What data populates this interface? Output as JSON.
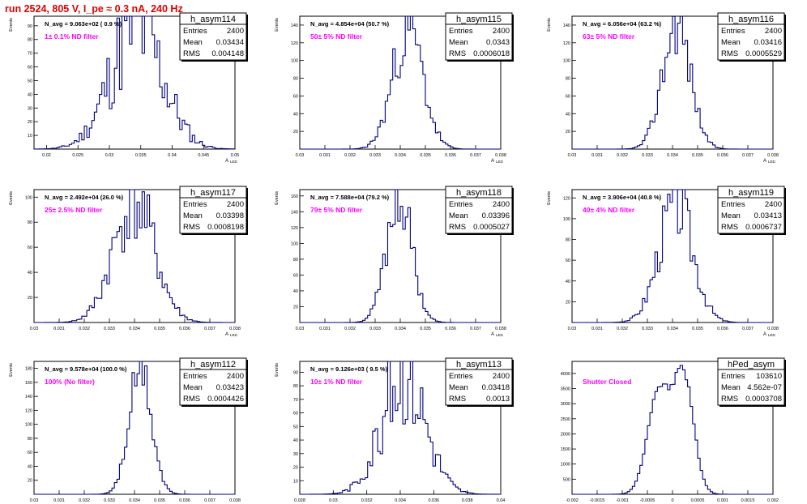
{
  "run_title": "run 2524,   805 V, I_pe ≈ 0.3 nA, 240 Hz",
  "colors": {
    "hist_line": "#00007f",
    "label_magenta": "#ff00ff",
    "title_red": "#e00000",
    "frame": "#000000"
  },
  "chart_data": [
    {
      "type": "bar",
      "hist_name": "h_asym114",
      "stats": {
        "entries_label": "Entries",
        "entries": "2400",
        "mean_label": "Mean",
        "mean": "0.03434",
        "rms_label": "RMS",
        "rms": "0.004148"
      },
      "navg_text": "N_avg = 9.063e+02 ( 0.9 %)",
      "filter_label": "1± 0.1% ND filter",
      "xlabel": "A",
      "xlabel_sub": "LED",
      "ylabel": "Events",
      "xlim": [
        0.018,
        0.05
      ],
      "ylim": [
        0,
        97
      ],
      "xticks": [
        0.02,
        0.025,
        0.03,
        0.035,
        0.04,
        0.045,
        0.05
      ],
      "xtick_labels": [
        "0.02",
        "0.025",
        "0.03",
        "0.035",
        "0.04",
        "0.045",
        "0.05"
      ],
      "yticks": [
        10,
        20,
        30,
        40,
        50,
        60,
        70,
        80,
        90
      ],
      "ytick_labels": [
        "10",
        "20",
        "30",
        "40",
        "50",
        "60",
        "70",
        "80",
        "90"
      ],
      "mean": 0.03434,
      "rms": 0.004148,
      "peak": 90,
      "noise": 0.5,
      "seed": 11
    },
    {
      "type": "bar",
      "hist_name": "h_asym115",
      "stats": {
        "entries_label": "Entries",
        "entries": "2400",
        "mean_label": "Mean",
        "mean": "0.0343",
        "rms_label": "RMS",
        "rms": "0.0006018"
      },
      "navg_text": "N_avg = 4.854e+04 (50.7 %)",
      "filter_label": "50± 5% ND filter",
      "xlabel": "A",
      "xlabel_sub": "LED",
      "ylabel": "Events",
      "xlim": [
        0.03,
        0.038
      ],
      "ylim": [
        0,
        150
      ],
      "xticks": [
        0.03,
        0.031,
        0.032,
        0.033,
        0.034,
        0.035,
        0.036,
        0.037,
        0.038
      ],
      "xtick_labels": [
        "0.03",
        "0.031",
        "0.032",
        "0.033",
        "0.034",
        "0.035",
        "0.036",
        "0.037",
        "0.038"
      ],
      "yticks": [
        20,
        40,
        60,
        80,
        100,
        120,
        140
      ],
      "ytick_labels": [
        "20",
        "40",
        "60",
        "80",
        "100",
        "120",
        "140"
      ],
      "mean": 0.0343,
      "rms": 0.0006018,
      "peak": 135,
      "noise": 0.3,
      "seed": 23
    },
    {
      "type": "bar",
      "hist_name": "h_asym116",
      "stats": {
        "entries_label": "Entries",
        "entries": "2400",
        "mean_label": "Mean",
        "mean": "0.03416",
        "rms_label": "RMS",
        "rms": "0.0005529"
      },
      "navg_text": "N_avg = 6.056e+04 (63.2 %)",
      "filter_label": "63± 5% ND filter",
      "xlabel": "A",
      "xlabel_sub": "LED",
      "ylabel": "Events",
      "xlim": [
        0.03,
        0.038
      ],
      "ylim": [
        0,
        150
      ],
      "xticks": [
        0.03,
        0.031,
        0.032,
        0.033,
        0.034,
        0.035,
        0.036,
        0.037,
        0.038
      ],
      "xtick_labels": [
        "0.03",
        "0.031",
        "0.032",
        "0.033",
        "0.034",
        "0.035",
        "0.036",
        "0.037",
        "0.038"
      ],
      "yticks": [
        20,
        40,
        60,
        80,
        100,
        120,
        140
      ],
      "ytick_labels": [
        "20",
        "40",
        "60",
        "80",
        "100",
        "120",
        "140"
      ],
      "mean": 0.03416,
      "rms": 0.0005529,
      "peak": 143,
      "noise": 0.25,
      "seed": 37
    },
    {
      "type": "bar",
      "hist_name": "h_asym117",
      "stats": {
        "entries_label": "Entries",
        "entries": "2400",
        "mean_label": "Mean",
        "mean": "0.03398",
        "rms_label": "RMS",
        "rms": "0.0008198"
      },
      "navg_text": "N_avg = 2.492e+04 (26.0 %)",
      "filter_label": "25± 2.5% ND filter",
      "xlabel": "A",
      "xlabel_sub": "LED",
      "ylabel": "Events",
      "xlim": [
        0.03,
        0.038
      ],
      "ylim": [
        0,
        106
      ],
      "xticks": [
        0.03,
        0.031,
        0.032,
        0.033,
        0.034,
        0.035,
        0.036,
        0.037,
        0.038
      ],
      "xtick_labels": [
        "0.03",
        "0.031",
        "0.032",
        "0.033",
        "0.034",
        "0.035",
        "0.036",
        "0.037",
        "0.038"
      ],
      "yticks": [
        20,
        40,
        60,
        80,
        100
      ],
      "ytick_labels": [
        "20",
        "40",
        "60",
        "80",
        "100"
      ],
      "mean": 0.03398,
      "rms": 0.0008198,
      "peak": 96,
      "noise": 0.35,
      "seed": 41
    },
    {
      "type": "bar",
      "hist_name": "h_asym118",
      "stats": {
        "entries_label": "Entries",
        "entries": "2400",
        "mean_label": "Mean",
        "mean": "0.03396",
        "rms_label": "RMS",
        "rms": "0.0005027"
      },
      "navg_text": "N_avg = 7.588e+04 (79.2 %)",
      "filter_label": "79± 5% ND filter",
      "xlabel": "A",
      "xlabel_sub": "LED",
      "ylabel": "Events",
      "xlim": [
        0.03,
        0.038
      ],
      "ylim": [
        0,
        168
      ],
      "xticks": [
        0.03,
        0.031,
        0.032,
        0.033,
        0.034,
        0.035,
        0.036,
        0.037,
        0.038
      ],
      "xtick_labels": [
        "0.03",
        "0.031",
        "0.032",
        "0.033",
        "0.034",
        "0.035",
        "0.036",
        "0.037",
        "0.038"
      ],
      "yticks": [
        20,
        40,
        60,
        80,
        100,
        120,
        140,
        160
      ],
      "ytick_labels": [
        "20",
        "40",
        "60",
        "80",
        "100",
        "120",
        "140",
        "160"
      ],
      "mean": 0.03396,
      "rms": 0.0005027,
      "peak": 158,
      "noise": 0.25,
      "seed": 53
    },
    {
      "type": "bar",
      "hist_name": "h_asym119",
      "stats": {
        "entries_label": "Entries",
        "entries": "2400",
        "mean_label": "Mean",
        "mean": "0.03413",
        "rms_label": "RMS",
        "rms": "0.0006737"
      },
      "navg_text": "N_avg = 3.906e+04 (40.8 %)",
      "filter_label": "40± 4% ND filter",
      "xlabel": "A",
      "xlabel_sub": "LED",
      "ylabel": "Events",
      "xlim": [
        0.03,
        0.038
      ],
      "ylim": [
        0,
        128
      ],
      "xticks": [
        0.03,
        0.031,
        0.032,
        0.033,
        0.034,
        0.035,
        0.036,
        0.037,
        0.038
      ],
      "xtick_labels": [
        "0.03",
        "0.031",
        "0.032",
        "0.033",
        "0.034",
        "0.035",
        "0.036",
        "0.037",
        "0.038"
      ],
      "yticks": [
        20,
        40,
        60,
        80,
        100,
        120
      ],
      "ytick_labels": [
        "20",
        "40",
        "60",
        "80",
        "100",
        "120"
      ],
      "mean": 0.03413,
      "rms": 0.0006737,
      "peak": 115,
      "noise": 0.3,
      "seed": 67
    },
    {
      "type": "bar",
      "hist_name": "h_asym112",
      "stats": {
        "entries_label": "Entries",
        "entries": "2400",
        "mean_label": "Mean",
        "mean": "0.03423",
        "rms_label": "RMS",
        "rms": "0.0004426"
      },
      "navg_text": "N_avg = 9.578e+04 (100.0 %)",
      "filter_label": "100% (No filter)",
      "xlabel": "A",
      "xlabel_sub": "LED",
      "ylabel": "Events",
      "xlim": [
        0.03,
        0.038
      ],
      "ylim": [
        0,
        190
      ],
      "xticks": [
        0.03,
        0.031,
        0.032,
        0.033,
        0.034,
        0.035,
        0.036,
        0.037,
        0.038
      ],
      "xtick_labels": [
        "0.03",
        "0.031",
        "0.032",
        "0.033",
        "0.034",
        "0.035",
        "0.036",
        "0.037",
        "0.038"
      ],
      "yticks": [
        20,
        40,
        60,
        80,
        100,
        120,
        140,
        160,
        180
      ],
      "ytick_labels": [
        "20",
        "40",
        "60",
        "80",
        "100",
        "120",
        "140",
        "160",
        "180"
      ],
      "mean": 0.03423,
      "rms": 0.0004426,
      "peak": 178,
      "noise": 0.2,
      "seed": 71
    },
    {
      "type": "bar",
      "hist_name": "h_asym113",
      "stats": {
        "entries_label": "Entries",
        "entries": "2400",
        "mean_label": "Mean",
        "mean": "0.03418",
        "rms_label": "RMS",
        "rms": "0.0013"
      },
      "navg_text": "N_avg = 9.126e+03 ( 9.5 %)",
      "filter_label": "10± 1% ND filter",
      "xlabel": "A",
      "xlabel_sub": "LED",
      "ylabel": "Events",
      "xlim": [
        0.028,
        0.04
      ],
      "ylim": [
        0,
        98
      ],
      "xticks": [
        0.028,
        0.03,
        0.032,
        0.034,
        0.036,
        0.038,
        0.04
      ],
      "xtick_labels": [
        "0.028",
        "0.03",
        "0.032",
        "0.034",
        "0.036",
        "0.038",
        "0.04"
      ],
      "yticks": [
        10,
        20,
        30,
        40,
        50,
        60,
        70,
        80,
        90
      ],
      "ytick_labels": [
        "10",
        "20",
        "30",
        "40",
        "50",
        "60",
        "70",
        "80",
        "90"
      ],
      "mean": 0.03418,
      "rms": 0.0013,
      "peak": 90,
      "noise": 0.45,
      "seed": 83
    },
    {
      "type": "bar",
      "hist_name": "hPed_asym",
      "stats": {
        "entries_label": "Entries",
        "entries": "103610",
        "mean_label": "Mean",
        "mean": "4.562e-07",
        "rms_label": "RMS",
        "rms": "0.0003708"
      },
      "navg_text": "",
      "filter_label": "Shutter Closed",
      "xlabel": "",
      "xlabel_sub": "",
      "ylabel": "",
      "xlim": [
        -0.002,
        0.002
      ],
      "ylim": [
        0,
        4400
      ],
      "xticks": [
        -0.002,
        -0.0015,
        -0.001,
        -0.0005,
        0,
        0.0005,
        0.001,
        0.0015,
        0.002
      ],
      "xtick_labels": [
        "-0.002",
        "-0.0015",
        "-0.001",
        "-0.0005",
        "0",
        "0.0005",
        "0.001",
        "0.0015",
        "0.002"
      ],
      "yticks": [
        500,
        1000,
        1500,
        2000,
        2500,
        3000,
        3500,
        4000
      ],
      "ytick_labels": [
        "500",
        "1000",
        "1500",
        "2000",
        "2500",
        "3000",
        "3500",
        "4000"
      ],
      "bimodal": [
        {
          "mu": -0.00028,
          "sigma": 0.00022,
          "amp": 3400
        },
        {
          "mu": 0.00022,
          "sigma": 0.0002,
          "amp": 3900
        }
      ],
      "noise": 0.04,
      "seed": 97
    }
  ]
}
